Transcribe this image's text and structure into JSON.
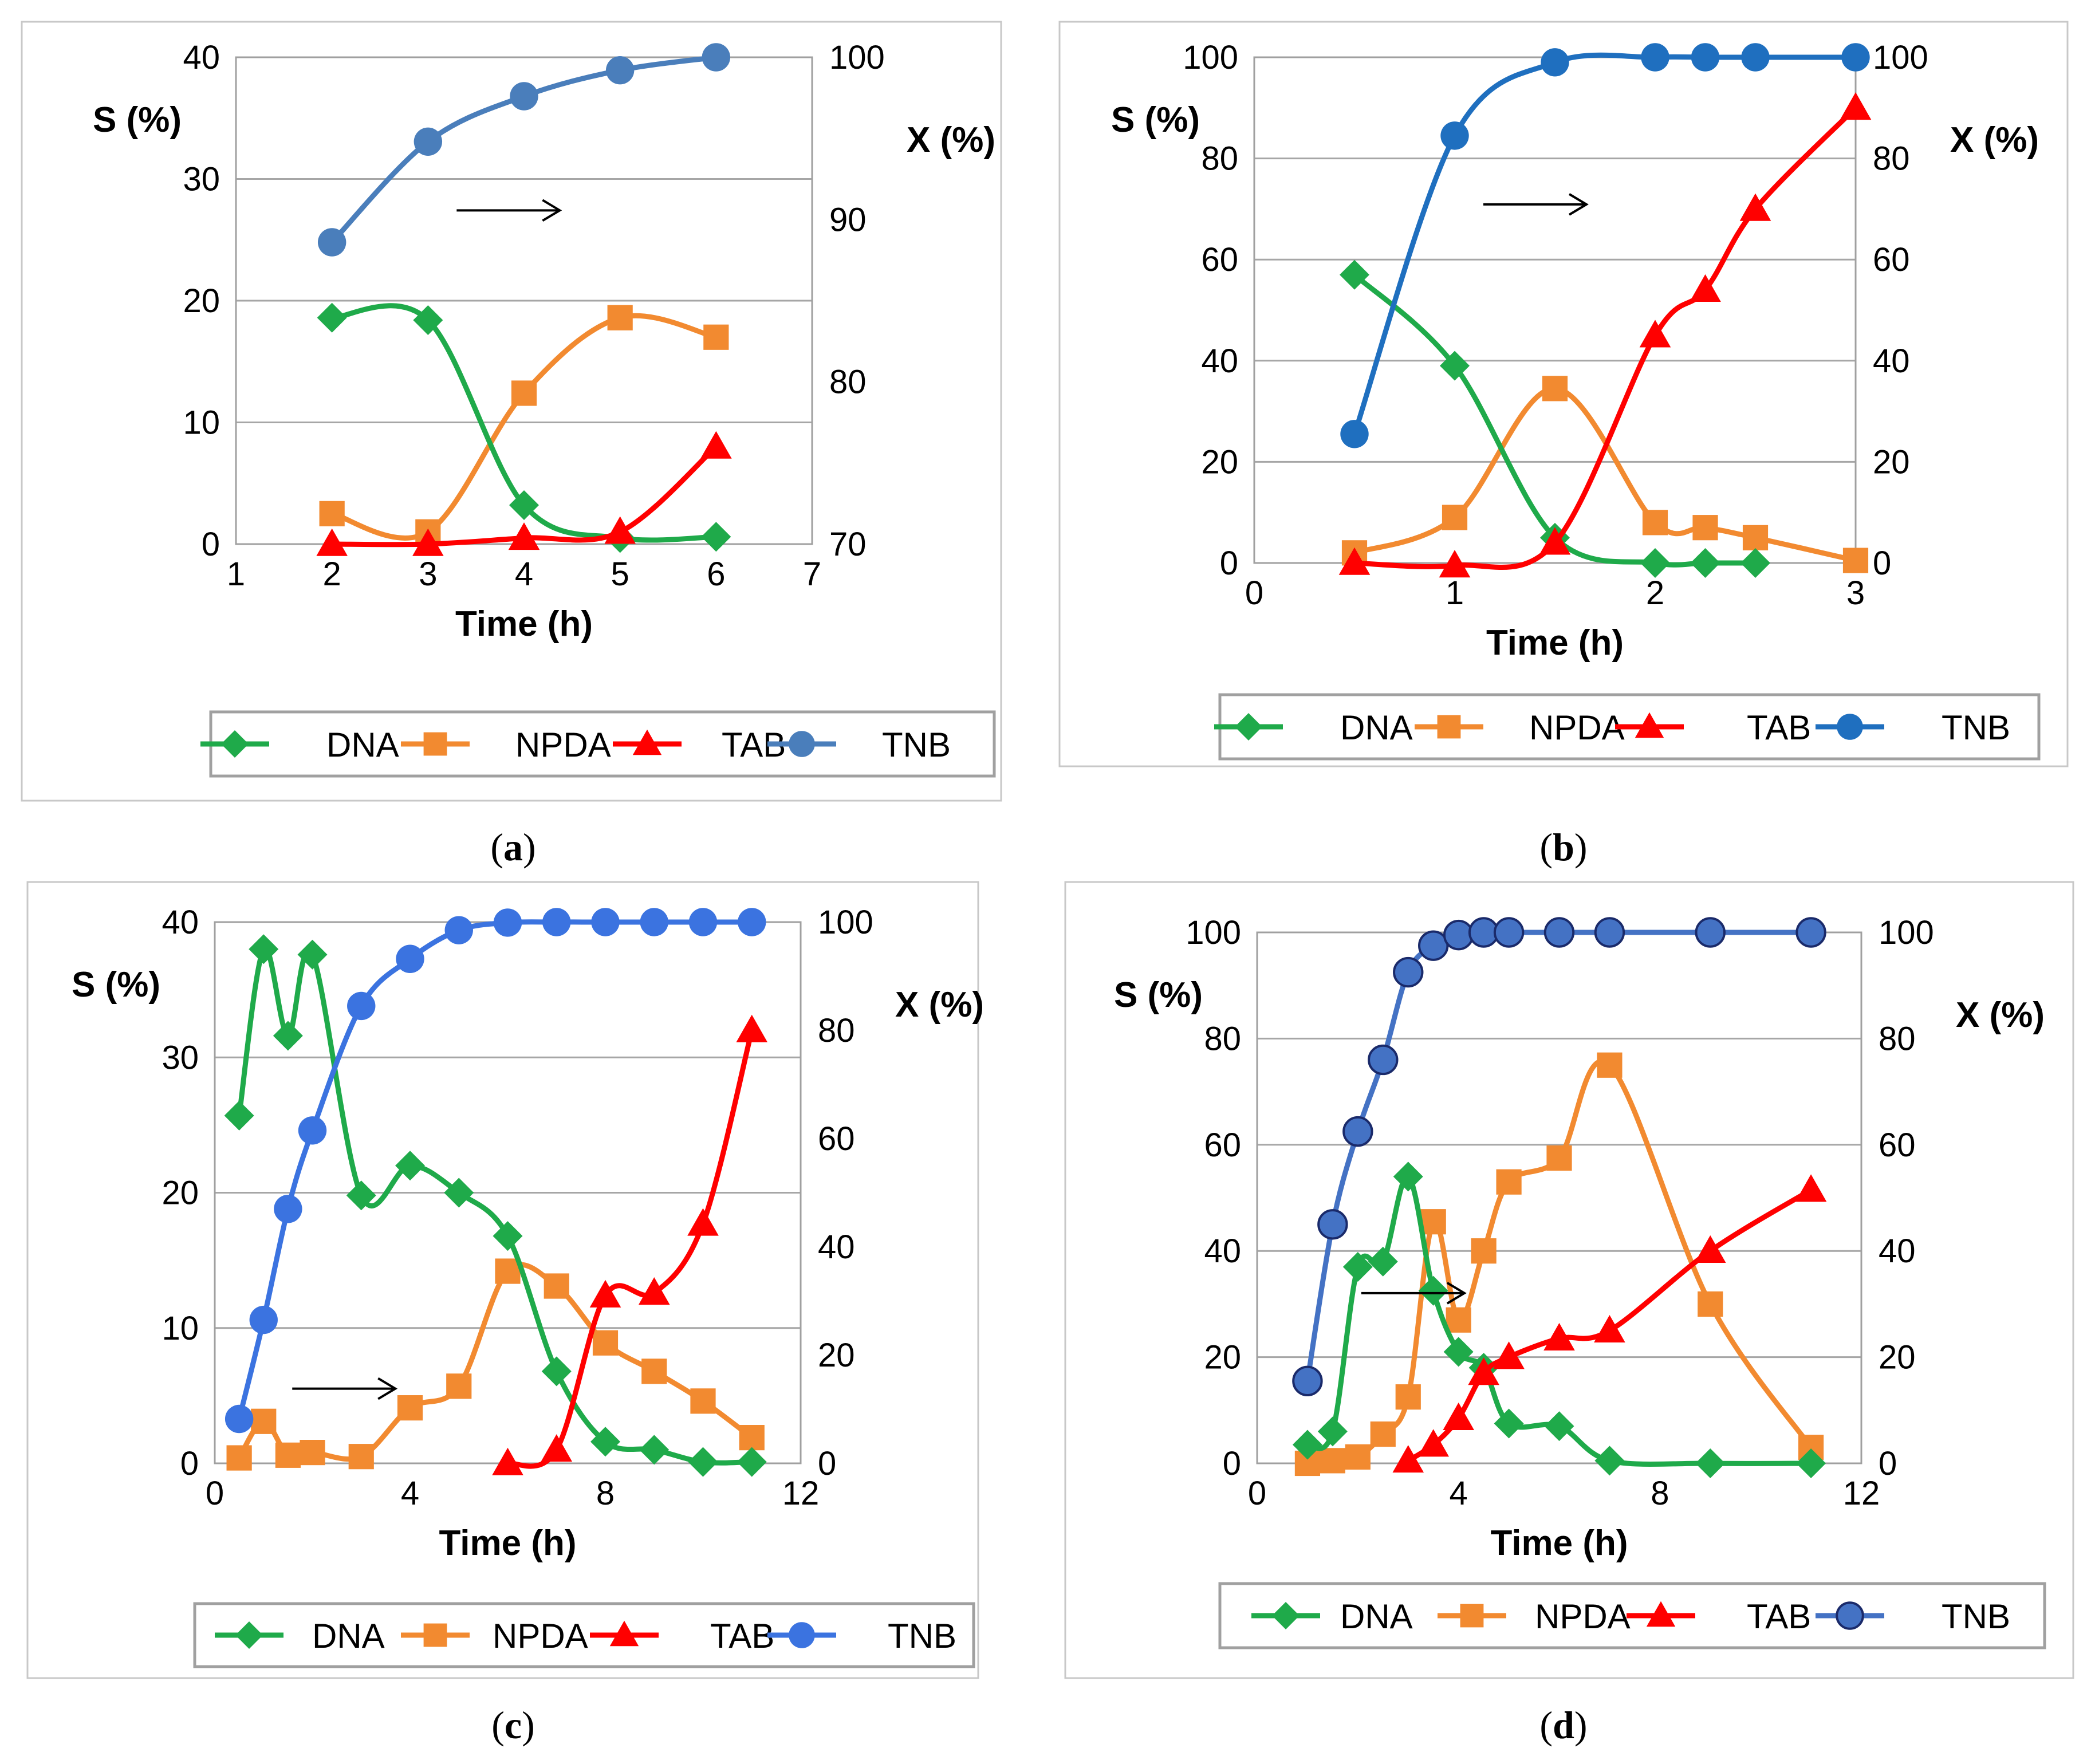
{
  "colors": {
    "DNA": "#1faa4a",
    "NPDA": "#f28a30",
    "TAB": "#ff0000",
    "TNB_a": "#4a7ebb",
    "TNB_b": "#1f6fbf",
    "TNB_c": "#3b73e0",
    "TNB_d": "#4472c4"
  },
  "chart_data": [
    {
      "type": "line",
      "caption": {
        "pre": "(",
        "letter": "a",
        "post": ")"
      },
      "xlabel": "Time (h)",
      "ylabel": "S (%)",
      "y2label": "X (%)",
      "xlim": [
        1,
        7
      ],
      "ylim": [
        0,
        40
      ],
      "y2lim": [
        70,
        100
      ],
      "xticks": [
        "1",
        "2",
        "3",
        "4",
        "5",
        "6",
        "7"
      ],
      "yticks": [
        "0",
        "10",
        "20",
        "30",
        "40"
      ],
      "y2ticks": [
        "70",
        "80",
        "90",
        "100"
      ],
      "legend": [
        "DNA",
        "NPDA",
        "TAB",
        "TNB"
      ],
      "series": [
        {
          "name": "DNA",
          "axis": "left",
          "x": [
            2,
            3,
            4,
            5,
            6
          ],
          "values": [
            18.6,
            18.4,
            3.2,
            0.5,
            0.6
          ]
        },
        {
          "name": "NPDA",
          "axis": "left",
          "x": [
            2,
            3,
            4,
            5,
            6
          ],
          "values": [
            2.5,
            1.0,
            12.4,
            18.6,
            17.0
          ]
        },
        {
          "name": "TAB",
          "axis": "left",
          "x": [
            2,
            3,
            4,
            5,
            6
          ],
          "values": [
            0.0,
            0.0,
            0.5,
            1.0,
            8.0
          ]
        },
        {
          "name": "TNB",
          "axis": "right",
          "x": [
            2,
            3,
            4,
            5,
            6
          ],
          "values": [
            88.6,
            94.8,
            97.6,
            99.2,
            100
          ]
        }
      ]
    },
    {
      "type": "line",
      "caption": {
        "pre": "(",
        "letter": "b",
        "post": ")"
      },
      "xlabel": "Time (h)",
      "ylabel": "S (%)",
      "y2label": "X (%)",
      "xlim": [
        0,
        3
      ],
      "ylim": [
        0,
        100
      ],
      "y2lim": [
        0,
        100
      ],
      "xticks": [
        "0",
        "1",
        "2",
        "3"
      ],
      "yticks": [
        "0",
        "20",
        "40",
        "60",
        "80",
        "100"
      ],
      "y2ticks": [
        "0",
        "20",
        "40",
        "60",
        "80",
        "100"
      ],
      "legend": [
        "DNA",
        "NPDA",
        "TAB",
        "TNB"
      ],
      "series": [
        {
          "name": "DNA",
          "axis": "left",
          "x": [
            0.5,
            1,
            1.5,
            2,
            2.25,
            2.5
          ],
          "values": [
            57,
            39,
            5,
            0,
            0,
            0
          ]
        },
        {
          "name": "NPDA",
          "axis": "left",
          "x": [
            0.5,
            1,
            1.5,
            2,
            2.25,
            2.5,
            3
          ],
          "values": [
            2,
            9,
            34.5,
            8,
            7,
            5,
            0.5
          ]
        },
        {
          "name": "TAB",
          "axis": "left",
          "x": [
            0.5,
            1,
            1.5,
            2,
            2.25,
            2.5,
            3
          ],
          "values": [
            0,
            -0.5,
            4,
            45,
            54,
            70,
            90
          ]
        },
        {
          "name": "TNB",
          "axis": "right",
          "x": [
            0.5,
            1,
            1.5,
            2,
            2.25,
            2.5,
            3
          ],
          "values": [
            25.5,
            84.5,
            99,
            100,
            100,
            100,
            100
          ]
        }
      ]
    },
    {
      "type": "line",
      "caption": {
        "pre": "(",
        "letter": "c",
        "post": ")"
      },
      "xlabel": "Time (h)",
      "ylabel": "S (%)",
      "y2label": "X (%)",
      "xlim": [
        0,
        12
      ],
      "ylim": [
        0,
        40
      ],
      "y2lim": [
        0,
        100
      ],
      "xticks": [
        "0",
        "4",
        "8",
        "12"
      ],
      "yticks": [
        "0",
        "10",
        "20",
        "30",
        "40"
      ],
      "y2ticks": [
        "0",
        "20",
        "40",
        "60",
        "80",
        "100"
      ],
      "legend": [
        "DNA",
        "NPDA",
        "TAB",
        "TNB"
      ],
      "series": [
        {
          "name": "DNA",
          "axis": "left",
          "x": [
            0.5,
            1,
            1.5,
            2,
            3,
            4,
            5,
            6,
            7,
            8,
            9,
            10,
            11
          ],
          "values": [
            25.7,
            38,
            31.6,
            37.6,
            19.8,
            22,
            20,
            16.8,
            6.8,
            1.6,
            1,
            0.1,
            0.1
          ]
        },
        {
          "name": "NPDA",
          "axis": "left",
          "x": [
            0.5,
            1,
            1.5,
            2,
            3,
            4,
            5,
            6,
            7,
            8,
            9,
            10,
            11
          ],
          "values": [
            0.4,
            3.1,
            0.6,
            0.8,
            0.5,
            4.1,
            5.7,
            14.2,
            13.1,
            8.9,
            6.8,
            4.6,
            1.9
          ]
        },
        {
          "name": "TAB",
          "axis": "left",
          "x": [
            6,
            7,
            8,
            9,
            10,
            11
          ],
          "values": [
            0,
            1,
            12.4,
            12.6,
            17.7,
            32
          ]
        },
        {
          "name": "TNB",
          "axis": "right",
          "x": [
            0.5,
            1,
            1.5,
            2,
            3,
            4,
            5,
            6,
            7,
            8,
            9,
            10,
            11
          ],
          "values": [
            8.2,
            26.5,
            47,
            61.5,
            84.5,
            93.2,
            98.5,
            99.9,
            100,
            100,
            100,
            100,
            100
          ]
        }
      ]
    },
    {
      "type": "line",
      "caption": {
        "pre": "(",
        "letter": "d",
        "post": ")"
      },
      "xlabel": "Time (h)",
      "ylabel": "S (%)",
      "y2label": "X (%)",
      "xlim": [
        0,
        12
      ],
      "ylim": [
        0,
        100
      ],
      "y2lim": [
        0,
        100
      ],
      "xticks": [
        "0",
        "4",
        "8",
        "12"
      ],
      "yticks": [
        "0",
        "20",
        "40",
        "60",
        "80",
        "100"
      ],
      "y2ticks": [
        "0",
        "20",
        "40",
        "60",
        "80",
        "100"
      ],
      "legend": [
        "DNA",
        "NPDA",
        "TAB",
        "TNB"
      ],
      "series": [
        {
          "name": "DNA",
          "axis": "left",
          "x": [
            1,
            1.5,
            2,
            2.5,
            3,
            3.5,
            4,
            4.5,
            5,
            6,
            7,
            9,
            11
          ],
          "values": [
            3.5,
            6,
            37,
            38,
            54,
            32.5,
            21,
            18,
            7.5,
            7,
            0.5,
            0,
            0
          ]
        },
        {
          "name": "NPDA",
          "axis": "left",
          "x": [
            1,
            1.5,
            2,
            2.5,
            3,
            3.5,
            4,
            4.5,
            5,
            6,
            7,
            9,
            11
          ],
          "values": [
            0,
            0.5,
            1.2,
            5.5,
            12.5,
            45.5,
            27,
            40,
            53,
            57.5,
            75,
            30,
            3
          ]
        },
        {
          "name": "TAB",
          "axis": "left",
          "x": [
            3,
            3.5,
            4,
            4.5,
            5,
            6,
            7,
            9,
            11
          ],
          "values": [
            0.5,
            3.5,
            8.5,
            17,
            20,
            23.5,
            25,
            40,
            51.5
          ]
        },
        {
          "name": "TNB",
          "axis": "right",
          "x": [
            1,
            1.5,
            2,
            2.5,
            3,
            3.5,
            4,
            4.5,
            5,
            6,
            7,
            9,
            11
          ],
          "values": [
            15.5,
            45,
            62.5,
            76,
            92.5,
            97.5,
            99.5,
            100,
            100,
            100,
            100,
            100,
            100
          ]
        }
      ]
    }
  ]
}
